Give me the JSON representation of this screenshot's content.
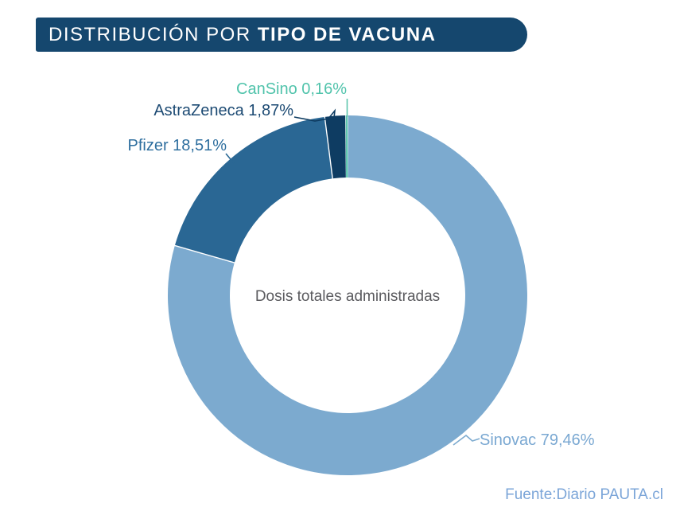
{
  "header": {
    "title_regular": "DISTRIBUCIÓN POR ",
    "title_bold": "TIPO DE VACUNA",
    "bg_color": "#15476e",
    "text_color": "#ffffff"
  },
  "chart_data": {
    "type": "pie",
    "subtype": "donut",
    "title": "DISTRIBUCIÓN POR TIPO DE VACUNA",
    "center_label": "Dosis totales administradas",
    "center_label_color": "#5b5b5f",
    "units": "%",
    "direction": "clockwise",
    "start_angle_deg": 0,
    "legend_position": "callout-labels",
    "grid": false,
    "series": [
      {
        "name": "Sinovac",
        "value": 79.46,
        "label": "Sinovac 79,46%",
        "color": "#7caacf",
        "label_color": "#7aa8d2"
      },
      {
        "name": "Pfizer",
        "value": 18.51,
        "label": "Pfizer 18,51%",
        "color": "#2a6794",
        "label_color": "#2f6f9f"
      },
      {
        "name": "AstraZeneca",
        "value": 1.87,
        "label": "AstraZeneca 1,87%",
        "color": "#0e3c62",
        "label_color": "#1c4a73"
      },
      {
        "name": "CanSino",
        "value": 0.16,
        "label": "CanSino 0,16%",
        "color": "#5ec6ae",
        "label_color": "#50c3ab"
      }
    ]
  },
  "source": {
    "text": "Fuente:Diario PAUTA.cl",
    "color": "#7ba5d8"
  }
}
